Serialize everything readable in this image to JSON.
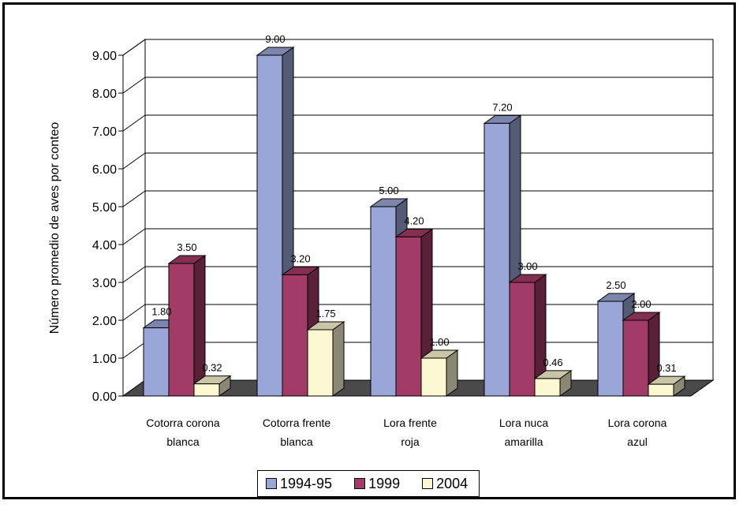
{
  "chart_data": {
    "type": "bar",
    "title": "",
    "ylabel": "Número promedio de aves por conteo",
    "xlabel": "",
    "ylim": [
      0,
      9
    ],
    "yticks": [
      "0.00",
      "1.00",
      "2.00",
      "3.00",
      "4.00",
      "5.00",
      "6.00",
      "7.00",
      "8.00",
      "9.00"
    ],
    "categories": [
      [
        "Cotorra corona",
        "blanca"
      ],
      [
        "Cotorra frente",
        "blanca"
      ],
      [
        "Lora frente",
        "roja"
      ],
      [
        "Lora nuca",
        "amarilla"
      ],
      [
        "Lora corona",
        "azul"
      ]
    ],
    "series": [
      {
        "name": "1994-95",
        "color": "#9aa6d8",
        "values": [
          1.8,
          9.0,
          5.0,
          7.2,
          2.5
        ],
        "labels": [
          "1.80",
          "9.00",
          "5.00",
          "7.20",
          "2.50"
        ]
      },
      {
        "name": "1999",
        "color": "#a23b66",
        "values": [
          3.5,
          3.2,
          4.2,
          3.0,
          2.0
        ],
        "labels": [
          "3.50",
          "3.20",
          "4.20",
          "3.00",
          "2.00"
        ]
      },
      {
        "name": "2004",
        "color": "#fbf8d2",
        "values": [
          0.32,
          1.75,
          1.0,
          0.46,
          0.31
        ],
        "labels": [
          "0.32",
          "1.75",
          "1.00",
          "0.46",
          "0.31"
        ]
      }
    ],
    "grid": true,
    "legend_position": "bottom",
    "style": "3d-clustered"
  }
}
